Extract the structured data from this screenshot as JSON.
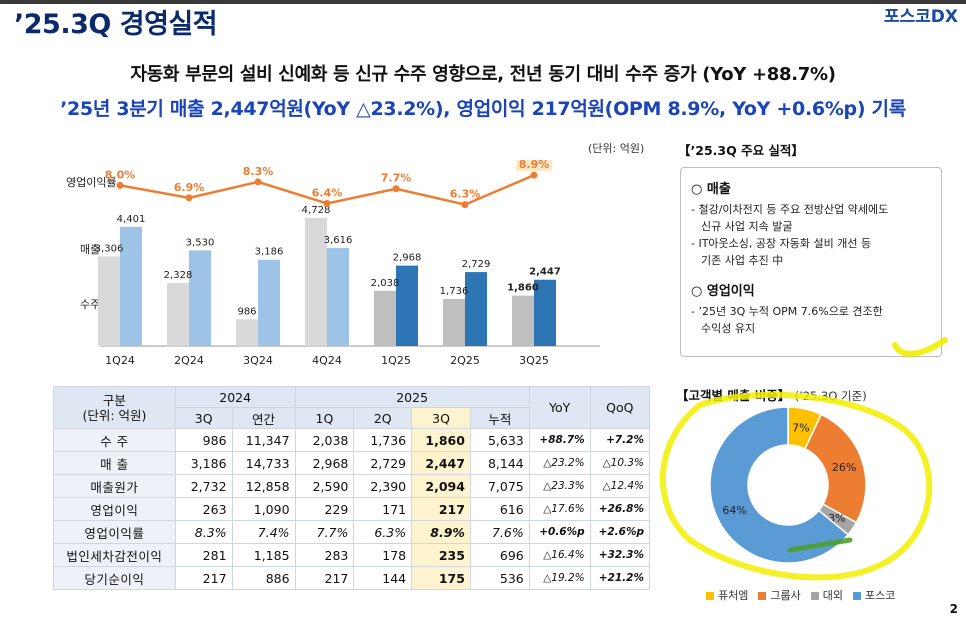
{
  "header": {
    "title": "’25.3Q 경영실적",
    "logo": "포스코DX"
  },
  "headline": {
    "line1": "자동화 부문의 설비 신예화 등 신규 수주 영향으로, 전년 동기 대비 수주 증가 (YoY +88.7%)",
    "line2": "’25년 3분기 매출 2,447억원(YoY △23.2%), 영업이익 217억원(OPM 8.9%, YoY +0.6%p) 기록"
  },
  "chart_unit": "(단위: 억원)",
  "chart_row_labels": {
    "opm": "영업이익률",
    "sales": "매출",
    "orders": "수주"
  },
  "colors": {
    "line": "#ed7d31",
    "bar_orders_2024": "#d9d9d9",
    "bar_sales_2024": "#9dc3e6",
    "bar_orders_2025": "#bfbfbf",
    "bar_sales_2025": "#2e75b6",
    "donut_future": "#ffc000",
    "donut_group": "#ed7d31",
    "donut_external": "#a5a5a5",
    "donut_posco": "#5b9bd5",
    "highlight": "#f7f200"
  },
  "chart_data": {
    "type": "bar",
    "title": "",
    "categories": [
      "1Q24",
      "2Q24",
      "3Q24",
      "4Q24",
      "1Q25",
      "2Q25",
      "3Q25"
    ],
    "series": [
      {
        "name": "수주",
        "values": [
          3306,
          2328,
          986,
          4728,
          2038,
          1736,
          1860
        ]
      },
      {
        "name": "매출",
        "values": [
          4401,
          3530,
          3186,
          3616,
          2968,
          2729,
          2447
        ]
      }
    ],
    "line_series": {
      "name": "영업이익률",
      "values": [
        8.0,
        6.9,
        8.3,
        6.4,
        7.7,
        6.3,
        8.9
      ],
      "labels": [
        "8.0%",
        "6.9%",
        "8.3%",
        "6.4%",
        "7.7%",
        "6.3%",
        "8.9%"
      ]
    },
    "value_labels": {
      "orders": [
        "3,306",
        "2,328",
        "986",
        "4,728",
        "2,038",
        "1,736",
        "1,860"
      ],
      "sales": [
        "4,401",
        "3,530",
        "3,186",
        "3,616",
        "2,968",
        "2,729",
        "2,447"
      ]
    },
    "xlabel": "",
    "ylabel": "",
    "ylim": [
      0,
      4800
    ]
  },
  "key_points": {
    "title": "【’25.3Q 주요 실적】",
    "sections": [
      {
        "heading": "○ 매출",
        "lines": [
          "- 철강/이차전지 등 주요 전방산업 약세에도",
          "  신규 사업 지속 발굴",
          "- IT아웃소싱, 공장 자동화 설비 개선 등",
          "  기존 사업 추진 中"
        ]
      },
      {
        "heading": "○ 영업이익",
        "lines": [
          "- ’25년 3Q 누적 OPM 7.6%으로 견조한",
          "  수익성 유지"
        ]
      }
    ]
  },
  "customer_share": {
    "title": "【고객별 매출 비중】",
    "subtitle": "(’25.3Q 기준)",
    "chart_data": {
      "type": "pie",
      "labels": [
        "퓨처엠",
        "그룹사",
        "대외",
        "포스코"
      ],
      "values": [
        7,
        26,
        3,
        64
      ],
      "value_labels": [
        "7%",
        "26%",
        "3%",
        "64%"
      ]
    },
    "legend": [
      "퓨처엠",
      "그룹사",
      "대외",
      "포스코"
    ]
  },
  "table": {
    "header_label1": "구분",
    "header_label2": "(단위: 억원)",
    "year1": "2024",
    "year2": "2025",
    "yoy": "YoY",
    "qoq": "QoQ",
    "sub": [
      "3Q",
      "연간",
      "1Q",
      "2Q",
      "3Q",
      "누적"
    ],
    "rows": [
      {
        "label": "수 주",
        "cells": [
          "986",
          "11,347",
          "2,038",
          "1,736",
          "1,860",
          "5,633"
        ],
        "yoy": "+88.7%",
        "qoq": "+7.2%"
      },
      {
        "label": "매 출",
        "cells": [
          "3,186",
          "14,733",
          "2,968",
          "2,729",
          "2,447",
          "8,144"
        ],
        "yoy": "△23.2%",
        "qoq": "△10.3%"
      },
      {
        "label": "매출원가",
        "cells": [
          "2,732",
          "12,858",
          "2,590",
          "2,390",
          "2,094",
          "7,075"
        ],
        "yoy": "△23.3%",
        "qoq": "△12.4%"
      },
      {
        "label": "영업이익",
        "cells": [
          "263",
          "1,090",
          "229",
          "171",
          "217",
          "616"
        ],
        "yoy": "△17.6%",
        "qoq": "+26.8%"
      },
      {
        "label": "영업이익률",
        "cells": [
          "8.3%",
          "7.4%",
          "7.7%",
          "6.3%",
          "8.9%",
          "7.6%"
        ],
        "yoy": "+0.6%p",
        "qoq": "+2.6%p"
      },
      {
        "label": "법인세차감전이익",
        "cells": [
          "281",
          "1,185",
          "283",
          "178",
          "235",
          "696"
        ],
        "yoy": "△16.4%",
        "qoq": "+32.3%"
      },
      {
        "label": "당기순이익",
        "cells": [
          "217",
          "886",
          "217",
          "144",
          "175",
          "536"
        ],
        "yoy": "△19.2%",
        "qoq": "+21.2%"
      }
    ]
  },
  "page_number": "2"
}
